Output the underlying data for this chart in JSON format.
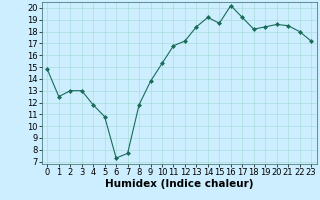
{
  "x": [
    0,
    1,
    2,
    3,
    4,
    5,
    6,
    7,
    8,
    9,
    10,
    11,
    12,
    13,
    14,
    15,
    16,
    17,
    18,
    19,
    20,
    21,
    22,
    23
  ],
  "y": [
    14.8,
    12.5,
    13.0,
    13.0,
    11.8,
    10.8,
    7.3,
    7.7,
    11.8,
    13.8,
    15.3,
    16.8,
    17.2,
    18.4,
    19.2,
    18.7,
    20.2,
    19.2,
    18.2,
    18.4,
    18.6,
    18.5,
    18.0,
    17.2
  ],
  "xlabel": "Humidex (Indice chaleur)",
  "xlim": [
    -0.5,
    23.5
  ],
  "ylim": [
    6.8,
    20.5
  ],
  "yticks": [
    7,
    8,
    9,
    10,
    11,
    12,
    13,
    14,
    15,
    16,
    17,
    18,
    19,
    20
  ],
  "xticks": [
    0,
    1,
    2,
    3,
    4,
    5,
    6,
    7,
    8,
    9,
    10,
    11,
    12,
    13,
    14,
    15,
    16,
    17,
    18,
    19,
    20,
    21,
    22,
    23
  ],
  "line_color": "#1a6b5a",
  "marker_color": "#1a6b5a",
  "bg_color": "#cceeff",
  "grid_color": "#aadddd",
  "xlabel_fontsize": 7.5,
  "tick_fontsize": 6.0
}
